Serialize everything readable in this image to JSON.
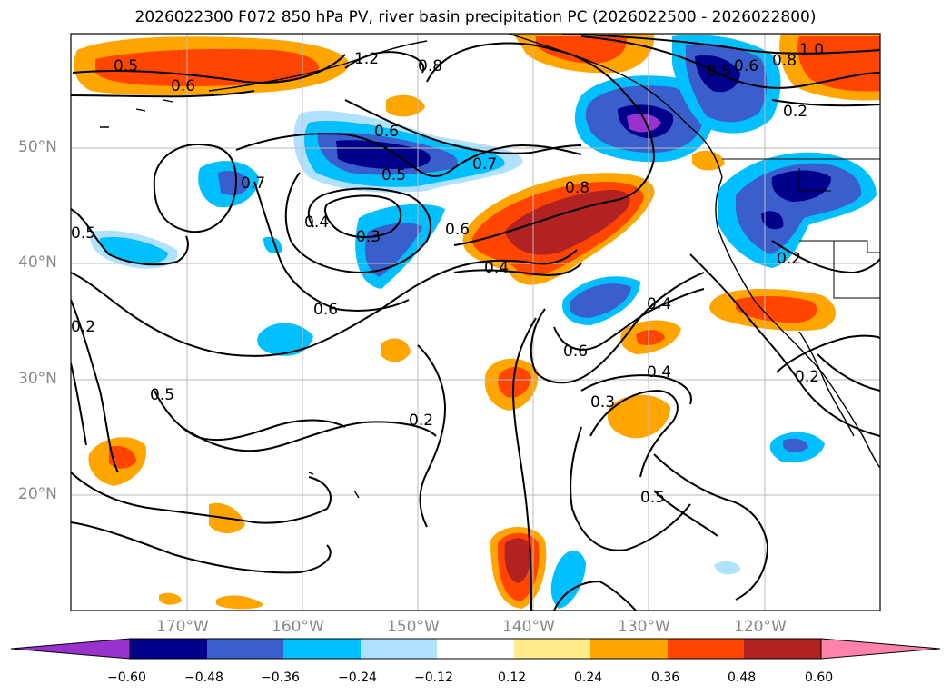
{
  "title": "2026022300 F072 850 hPa PV, river basin precipitation PC (2026022500 - 2026022800)",
  "map": {
    "type": "contour-map",
    "lon_range": [
      180,
      -110
    ],
    "lat_range": [
      10,
      60
    ],
    "grid": true,
    "lat_labels": [
      "50°N",
      "40°N",
      "30°N",
      "20°N"
    ],
    "lon_labels": [
      "170°W",
      "160°W",
      "150°W",
      "140°W",
      "130°W",
      "120°W"
    ],
    "contour_variable": "850 hPa PV",
    "contour_labels": [
      "0.5",
      "0.6",
      "1.2",
      "0.8",
      "0.6",
      "0.5",
      "0.7",
      "0.8",
      "0.7",
      "0.4",
      "0.3",
      "0.6",
      "0.4",
      "0.6",
      "0.5",
      "0.2",
      "0.5",
      "0.6",
      "0.4",
      "0.3",
      "0.2",
      "0.5",
      "0.2",
      "0.4",
      "1.0",
      "0.8",
      "0.6",
      "0.5",
      "0.2",
      "0.2"
    ]
  },
  "colorbar": {
    "ticks": [
      "−0.60",
      "−0.48",
      "−0.36",
      "−0.24",
      "−0.12",
      "0.12",
      "0.24",
      "0.36",
      "0.48",
      "0.60"
    ],
    "colors": [
      "#9932cc",
      "#00008b",
      "#3a5fcd",
      "#00bfff",
      "#b0e2ff",
      "#ffffff",
      "#ffec8b",
      "#ffa500",
      "#ff4500",
      "#b22222",
      "#ff82ab"
    ]
  }
}
